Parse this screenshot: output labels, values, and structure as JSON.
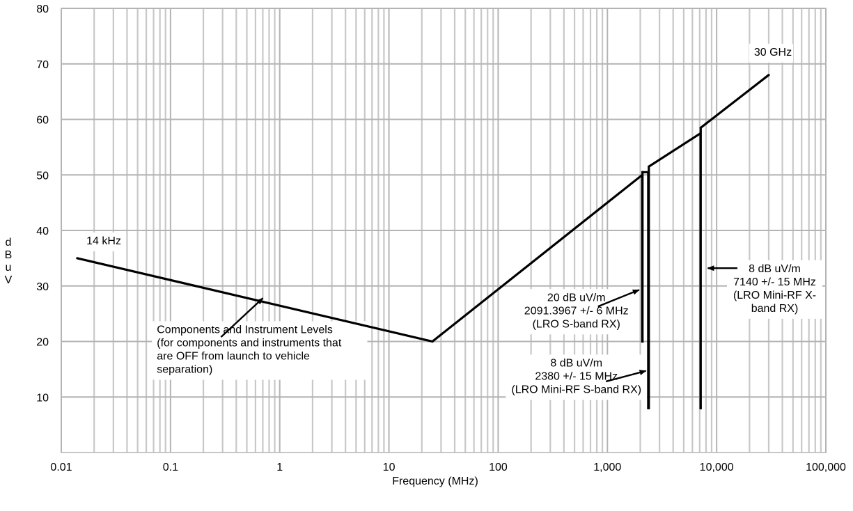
{
  "chart_data": {
    "type": "line",
    "title": "",
    "xlabel": "Frequency (MHz)",
    "ylabel": "dBuV",
    "x_scale": "log",
    "xlim": [
      0.01,
      100000
    ],
    "ylim": [
      0,
      80
    ],
    "grid": true,
    "x_ticks": [
      {
        "value": 0.01,
        "label": "0.01"
      },
      {
        "value": 0.1,
        "label": "0.1"
      },
      {
        "value": 1,
        "label": "1"
      },
      {
        "value": 10,
        "label": "10"
      },
      {
        "value": 100,
        "label": "100"
      },
      {
        "value": 1000,
        "label": "1,000"
      },
      {
        "value": 10000,
        "label": "10,000"
      },
      {
        "value": 100000,
        "label": "100,000"
      }
    ],
    "y_ticks": [
      {
        "value": 10,
        "label": "10"
      },
      {
        "value": 20,
        "label": "20"
      },
      {
        "value": 30,
        "label": "30"
      },
      {
        "value": 40,
        "label": "40"
      },
      {
        "value": 50,
        "label": "50"
      },
      {
        "value": 60,
        "label": "60"
      },
      {
        "value": 70,
        "label": "70"
      },
      {
        "value": 80,
        "label": "80"
      }
    ],
    "series": [
      {
        "x": [
          0.014,
          25,
          2085,
          2085,
          2097,
          2097,
          2365,
          2365,
          2395,
          2395,
          7125,
          7125,
          7155,
          7155,
          30000
        ],
        "y": [
          35,
          20,
          50,
          20,
          20,
          50.5,
          50.5,
          8,
          8,
          51.5,
          57.5,
          8,
          8,
          58.5,
          68
        ]
      }
    ],
    "annotations": [
      {
        "lines": [
          "14 kHz"
        ],
        "x": 0.017,
        "y": 37.5,
        "align": "start"
      },
      {
        "lines": [
          "30 GHz"
        ],
        "x": 22000,
        "y": 71.5,
        "align": "start"
      },
      {
        "lines": [
          "Components and Instrument Levels",
          "(for components and instruments that",
          "are OFF from launch to vehicle",
          "separation)"
        ],
        "x": 0.075,
        "y": 21.5,
        "align": "start",
        "arrow_to": [
          0.7,
          27.8
        ],
        "arrow_from": [
          0.29,
          20.8
        ]
      },
      {
        "lines": [
          "20 dB uV/m",
          "2091.3967 +/- 6 MHz",
          "(LRO S-band RX)"
        ],
        "x": 520,
        "y": 27.3,
        "align": "middle",
        "arrow_to": [
          1950,
          29.3
        ],
        "arrow_from": [
          820,
          26.3
        ]
      },
      {
        "lines": [
          "8 dB uV/m",
          "2380 +/- 15 MHz",
          "(LRO Mini-RF S-band RX)"
        ],
        "x": 520,
        "y": 15.5,
        "align": "middle",
        "arrow_to": [
          2250,
          14.7
        ],
        "arrow_from": [
          970,
          12.8
        ]
      },
      {
        "lines": [
          "8 dB uV/m",
          "7140 +/- 15 MHz",
          "(LRO Mini-RF X-",
          "band RX)"
        ],
        "x": 34000,
        "y": 32.5,
        "align": "middle",
        "arrow_to": [
          8300,
          33.2
        ],
        "arrow_from": [
          15500,
          33.2
        ]
      }
    ],
    "ylabel_letters": [
      "d",
      "B",
      "u",
      "V"
    ]
  }
}
